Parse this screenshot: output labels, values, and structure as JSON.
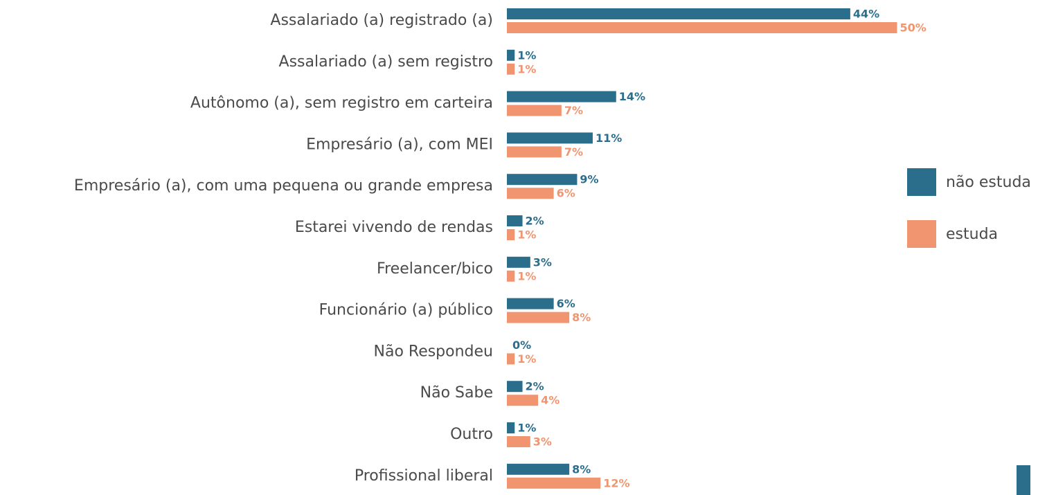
{
  "chart_data": {
    "type": "bar",
    "orientation": "horizontal",
    "categories": [
      "Assalariado (a) registrado (a)",
      "Assalariado (a) sem registro",
      "Autônomo (a), sem registro em carteira",
      "Empresário (a), com MEI",
      "Empresário (a), com uma pequena ou grande empresa",
      "Estarei vivendo de rendas",
      "Freelancer/bico",
      "Funcionário (a) público",
      "Não Respondeu",
      "Não Sabe",
      "Outro",
      "Profissional liberal"
    ],
    "series": [
      {
        "name": "não estuda",
        "color": "#2b6e8c",
        "values": [
          44,
          1,
          14,
          11,
          9,
          2,
          3,
          6,
          0,
          2,
          1,
          8
        ],
        "value_labels": [
          "44%",
          "1%",
          "14%",
          "11%",
          "9%",
          "2%",
          "3%",
          "6%",
          "0%",
          "2%",
          "1%",
          "8%"
        ]
      },
      {
        "name": "estuda",
        "color": "#f0956f",
        "values": [
          50,
          1,
          7,
          7,
          6,
          1,
          1,
          8,
          1,
          4,
          3,
          12
        ],
        "value_labels": [
          "50%",
          "1%",
          "7%",
          "7%",
          "6%",
          "1%",
          "1%",
          "8%",
          "1%",
          "4%",
          "3%",
          "12%"
        ]
      }
    ],
    "legend": "right"
  }
}
